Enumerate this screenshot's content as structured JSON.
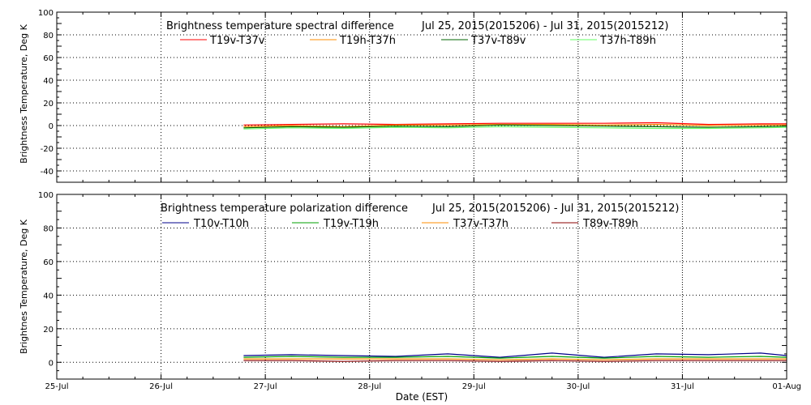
{
  "chart_data": [
    {
      "type": "line",
      "title": "Brightness temperature spectral difference",
      "date_range": "Jul 25, 2015(2015206) - Jul 31, 2015(2015212)",
      "ylabel": "Brightness Temperature, Deg K",
      "xlabel": "",
      "ylim": [
        -50,
        100
      ],
      "yticks": [
        "-40",
        "-20",
        "0",
        "20",
        "40",
        "60",
        "80",
        "100"
      ],
      "ytick_values": [
        -40,
        -20,
        0,
        20,
        40,
        60,
        80,
        100
      ],
      "xlim": [
        "2015-07-25",
        "2015-08-01"
      ],
      "grid": true,
      "legend_position": "top-center",
      "series": [
        {
          "name": "T19v-T37v",
          "color": "#ff0000",
          "x": [
            "2015-07-26T19:00",
            "2015-07-27T06:00",
            "2015-07-27T18:00",
            "2015-07-28T06:00",
            "2015-07-28T18:00",
            "2015-07-29T06:00",
            "2015-07-29T18:00",
            "2015-07-30T06:00",
            "2015-07-30T18:00",
            "2015-07-31T06:00",
            "2015-07-31T18:00",
            "2015-08-01T00:00"
          ],
          "y": [
            0.5,
            1,
            1.5,
            1,
            1.5,
            2,
            2,
            2,
            2.5,
            1,
            1.5,
            1.5
          ]
        },
        {
          "name": "T19h-T37h",
          "color": "#ff8c00",
          "x": [
            "2015-07-26T19:00",
            "2015-07-27T06:00",
            "2015-07-27T18:00",
            "2015-07-28T06:00",
            "2015-07-28T18:00",
            "2015-07-29T06:00",
            "2015-07-29T18:00",
            "2015-07-30T06:00",
            "2015-07-30T18:00",
            "2015-07-31T06:00",
            "2015-07-31T18:00",
            "2015-08-01T00:00"
          ],
          "y": [
            -1,
            0,
            -1,
            0.5,
            0.5,
            1,
            1,
            0.5,
            1,
            0,
            0.5,
            0.5
          ]
        },
        {
          "name": "T37v-T89v",
          "color": "#006400",
          "x": [
            "2015-07-26T19:00",
            "2015-07-27T06:00",
            "2015-07-27T18:00",
            "2015-07-28T06:00",
            "2015-07-28T18:00",
            "2015-07-29T06:00",
            "2015-07-29T18:00",
            "2015-07-30T06:00",
            "2015-07-30T18:00",
            "2015-07-31T06:00",
            "2015-07-31T18:00",
            "2015-08-01T00:00"
          ],
          "y": [
            -2,
            -1,
            -1.5,
            -0.5,
            -1,
            0.5,
            0,
            -0.5,
            -1,
            -1.5,
            -1,
            -0.5
          ]
        },
        {
          "name": "T37h-T89h",
          "color": "#66ff66",
          "x": [
            "2015-07-26T19:00",
            "2015-07-27T06:00",
            "2015-07-27T18:00",
            "2015-07-28T06:00",
            "2015-07-28T18:00",
            "2015-07-29T06:00",
            "2015-07-29T18:00",
            "2015-07-30T06:00",
            "2015-07-30T18:00",
            "2015-07-31T06:00",
            "2015-07-31T18:00",
            "2015-08-01T00:00"
          ],
          "y": [
            -3,
            -2,
            -2.5,
            -1.5,
            -2,
            -1,
            -1.5,
            -2,
            -2.5,
            -2.5,
            -2,
            -1.5
          ]
        }
      ]
    },
    {
      "type": "line",
      "title": "Brightness temperature polarization difference",
      "date_range": "Jul 25, 2015(2015206) - Jul 31, 2015(2015212)",
      "ylabel": "Brightnes Temperature, Deg K",
      "xlabel": "Date (EST)",
      "ylim": [
        -10,
        100
      ],
      "yticks": [
        "0",
        "20",
        "40",
        "60",
        "80",
        "100"
      ],
      "ytick_values": [
        0,
        20,
        40,
        60,
        80,
        100
      ],
      "xlim": [
        "2015-07-25",
        "2015-08-01"
      ],
      "xticks": [
        "25-Jul",
        "26-Jul",
        "27-Jul",
        "28-Jul",
        "29-Jul",
        "30-Jul",
        "31-Jul",
        "01-Aug"
      ],
      "grid": true,
      "legend_position": "top-center",
      "series": [
        {
          "name": "T10v-T10h",
          "color": "#00008b",
          "x": [
            "2015-07-26T19:00",
            "2015-07-27T06:00",
            "2015-07-27T18:00",
            "2015-07-28T06:00",
            "2015-07-28T18:00",
            "2015-07-29T06:00",
            "2015-07-29T18:00",
            "2015-07-30T06:00",
            "2015-07-30T18:00",
            "2015-07-31T06:00",
            "2015-07-31T18:00",
            "2015-08-01T00:00"
          ],
          "y": [
            4,
            4.5,
            4,
            3.5,
            5,
            3,
            5.5,
            3,
            5,
            4.5,
            5.5,
            4
          ]
        },
        {
          "name": "T19v-T19h",
          "color": "#00a000",
          "x": [
            "2015-07-26T19:00",
            "2015-07-27T06:00",
            "2015-07-27T18:00",
            "2015-07-28T06:00",
            "2015-07-28T18:00",
            "2015-07-29T06:00",
            "2015-07-29T18:00",
            "2015-07-30T06:00",
            "2015-07-30T18:00",
            "2015-07-31T06:00",
            "2015-07-31T18:00",
            "2015-08-01T00:00"
          ],
          "y": [
            3,
            3.5,
            3,
            3,
            3.5,
            2.5,
            3.5,
            2.5,
            3.5,
            3,
            3.5,
            3
          ]
        },
        {
          "name": "T37v-T37h",
          "color": "#ff8c00",
          "x": [
            "2015-07-26T19:00",
            "2015-07-27T06:00",
            "2015-07-27T18:00",
            "2015-07-28T06:00",
            "2015-07-28T18:00",
            "2015-07-29T06:00",
            "2015-07-29T18:00",
            "2015-07-30T06:00",
            "2015-07-30T18:00",
            "2015-07-31T06:00",
            "2015-07-31T18:00",
            "2015-08-01T00:00"
          ],
          "y": [
            2,
            2,
            2,
            2,
            2,
            1.5,
            2,
            1.5,
            2,
            2,
            2,
            2
          ]
        },
        {
          "name": "T89v-T89h",
          "color": "#8b0000",
          "x": [
            "2015-07-26T19:00",
            "2015-07-27T06:00",
            "2015-07-27T18:00",
            "2015-07-28T06:00",
            "2015-07-28T18:00",
            "2015-07-29T06:00",
            "2015-07-29T18:00",
            "2015-07-30T06:00",
            "2015-07-30T18:00",
            "2015-07-31T06:00",
            "2015-07-31T18:00",
            "2015-08-01T00:00"
          ],
          "y": [
            1,
            1,
            0.5,
            1,
            1,
            0.5,
            1,
            0.5,
            1,
            1,
            1,
            1
          ]
        }
      ]
    }
  ]
}
